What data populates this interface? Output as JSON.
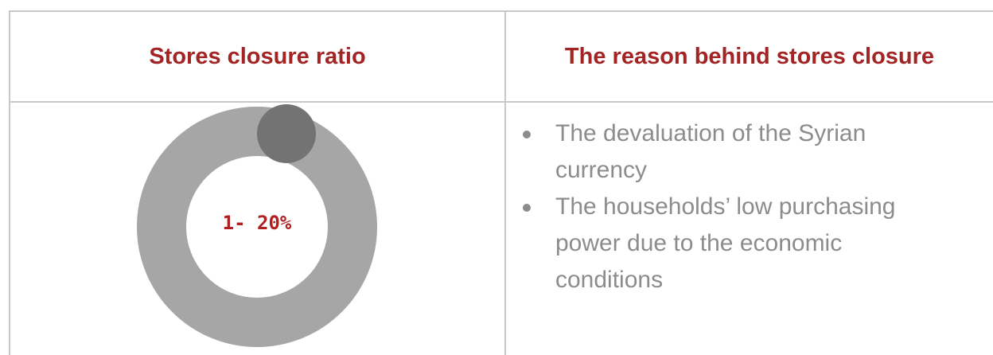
{
  "table": {
    "headers": [
      "Stores closure ratio",
      "The reason behind stores closure"
    ],
    "rows": [
      [
        "1- 20%",
        [
          "The devaluation of the Syrian currency",
          "The households’ low purchasing power due to the economic conditions"
        ]
      ]
    ]
  }
}
